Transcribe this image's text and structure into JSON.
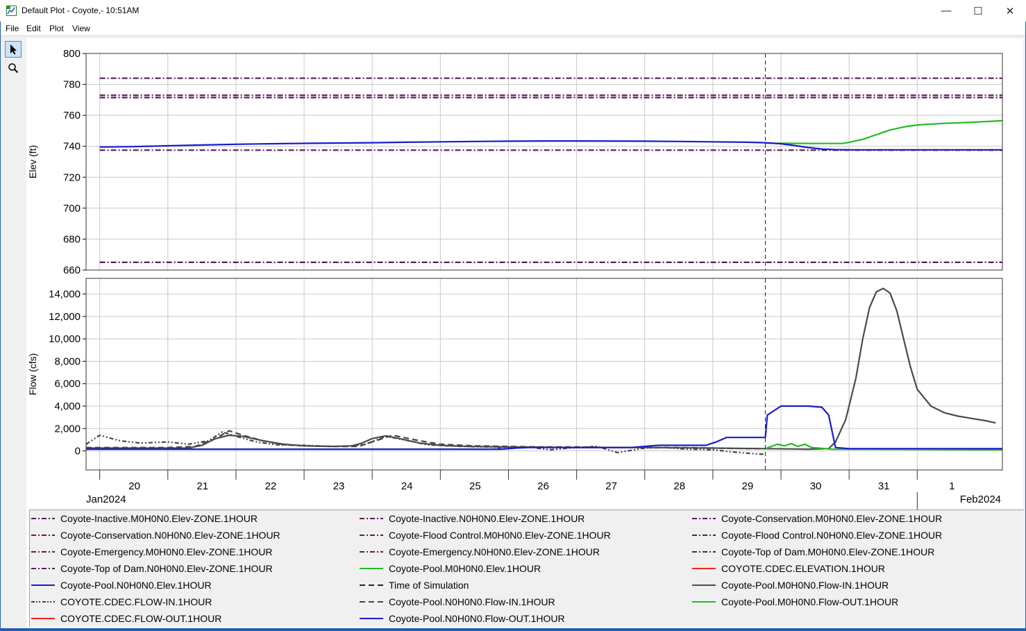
{
  "window": {
    "title": "Default Plot - Coyote,- 10:51AM",
    "icon": "chart-app-icon",
    "buttons": {
      "minimize": "—",
      "maximize": "☐",
      "close": "✕"
    }
  },
  "menu": {
    "items": [
      "File",
      "Edit",
      "Plot",
      "View"
    ]
  },
  "tools": [
    {
      "name": "pointer",
      "icon": "pointer-arrow-icon",
      "active": true
    },
    {
      "name": "zoom",
      "icon": "magnifier-icon",
      "active": false
    }
  ],
  "chart_data": [
    {
      "type": "line",
      "ylabel": "Elev (ft)",
      "ylim": [
        660,
        800
      ],
      "yticks": [
        "800",
        "780",
        "760",
        "740",
        "720",
        "700",
        "680",
        "660"
      ],
      "grid": true,
      "time_of_simulation": 29.77,
      "series": [
        {
          "name": "Coyote-Top of Dam",
          "color": "#5a1a5a",
          "style": "dashdot",
          "x": [
            20,
            33.25
          ],
          "y": [
            784,
            784
          ]
        },
        {
          "name": "Coyote-Flood Control",
          "color": "#5a1a5a",
          "style": "dashdot",
          "x": [
            20,
            33.25
          ],
          "y": [
            773,
            773
          ]
        },
        {
          "name": "Coyote-Emergency",
          "color": "#5a1a5a",
          "style": "dashdot",
          "x": [
            20,
            33.25
          ],
          "y": [
            771.5,
            771.5
          ]
        },
        {
          "name": "Coyote-Conservation",
          "color": "#5a1a5a",
          "style": "dashdot",
          "x": [
            20,
            33.25
          ],
          "y": [
            737.5,
            737.5
          ]
        },
        {
          "name": "Coyote-Inactive",
          "color": "#5a1a5a",
          "style": "dashdot",
          "x": [
            20,
            33.25
          ],
          "y": [
            665,
            665
          ]
        },
        {
          "name": "Coyote-Pool.M0H0N0.Elev.1HOUR",
          "color": "#22bb22",
          "style": "solid",
          "x": [
            29.77,
            30.5,
            30.9,
            31.0,
            31.2,
            31.4,
            31.6,
            31.8,
            32.0,
            32.4,
            32.8,
            33.25
          ],
          "y": [
            742,
            741.8,
            741.8,
            742.5,
            744.5,
            747.5,
            750.5,
            752.5,
            753.8,
            754.8,
            755.5,
            756.5
          ]
        },
        {
          "name": "Coyote-Pool.N0H0N0.Elev.1HOUR",
          "color": "#1a1acc",
          "style": "solid",
          "x": [
            20,
            20.5,
            21,
            21.5,
            22,
            22.5,
            23,
            24,
            24.5,
            25,
            25.5,
            26,
            26.5,
            27,
            28,
            28.5,
            29,
            29.5,
            29.77,
            30.0,
            30.2,
            30.4,
            30.6,
            30.8,
            31.0,
            33.25
          ],
          "y": [
            739.5,
            739.8,
            740.3,
            740.8,
            741.3,
            741.6,
            741.9,
            742.3,
            742.6,
            742.9,
            743.1,
            743.3,
            743.4,
            743.4,
            743.3,
            743.1,
            742.9,
            742.6,
            742.3,
            741.6,
            740.5,
            739.2,
            738.2,
            737.8,
            737.7,
            737.7
          ]
        }
      ]
    },
    {
      "type": "line",
      "ylabel": "Flow (cfs)",
      "ylim": [
        -1700,
        15400
      ],
      "yticks": [
        "14,000",
        "12,000",
        "10,000",
        "8,000",
        "6,000",
        "4,000",
        "2,000",
        "0"
      ],
      "ytick_values": [
        14000,
        12000,
        10000,
        8000,
        6000,
        4000,
        2000,
        0
      ],
      "grid": true,
      "xticks": [
        "20",
        "21",
        "22",
        "23",
        "24",
        "25",
        "26",
        "27",
        "28",
        "29",
        "30",
        "31",
        "1"
      ],
      "xtick_values": [
        20,
        21,
        22,
        23,
        24,
        25,
        26,
        27,
        28,
        29,
        30,
        31,
        32
      ],
      "xlim": [
        19.8,
        33.25
      ],
      "month_labels": [
        "Jan2024",
        "Feb2024"
      ],
      "time_of_simulation": 29.77,
      "series": [
        {
          "name": "COYOTE.CDEC.FLOW-IN.1HOUR",
          "color": "#444444",
          "style": "dashdotdot",
          "x": [
            19.8,
            20.0,
            20.3,
            20.6,
            21.0,
            21.3,
            21.6,
            21.8,
            22.0,
            22.3,
            22.6,
            23.0,
            23.3,
            23.6,
            23.9,
            24.2,
            24.5,
            24.8,
            25.1,
            25.4,
            25.7,
            26.0,
            26.3,
            26.6,
            27.0,
            27.3,
            27.6,
            28.0,
            28.3,
            28.6,
            29.0,
            29.3,
            29.6,
            29.75
          ],
          "y": [
            600,
            1400,
            900,
            700,
            800,
            600,
            900,
            1700,
            1300,
            800,
            550,
            500,
            420,
            400,
            600,
            1300,
            950,
            550,
            450,
            380,
            350,
            250,
            350,
            100,
            300,
            400,
            -150,
            250,
            300,
            150,
            100,
            -100,
            -250,
            -300
          ]
        },
        {
          "name": "Coyote-Pool.N0H0N0.Flow-IN.1HOUR",
          "color": "#444444",
          "style": "dashed",
          "x": [
            19.8,
            20.2,
            20.6,
            21.0,
            21.4,
            21.7,
            21.9,
            22.1,
            22.4,
            22.7,
            23.0,
            23.4,
            23.8,
            24.0,
            24.3,
            24.7,
            25.0,
            25.5,
            26.0,
            26.5,
            27.0,
            27.5,
            28.0,
            28.5,
            29.0,
            29.5,
            29.75
          ],
          "y": [
            300,
            300,
            300,
            300,
            400,
            1100,
            1800,
            1400,
            900,
            550,
            450,
            400,
            400,
            800,
            1400,
            900,
            600,
            450,
            400,
            350,
            350,
            300,
            300,
            300,
            250,
            200,
            200
          ]
        },
        {
          "name": "Coyote-Pool.M0H0N0.Flow-IN.1HOUR",
          "color": "#4a4a4a",
          "style": "solid",
          "x": [
            19.8,
            20.5,
            21.3,
            21.5,
            21.7,
            21.9,
            22.1,
            22.4,
            22.7,
            23.0,
            23.4,
            23.7,
            23.85,
            24.0,
            24.2,
            24.4,
            24.7,
            25.0,
            25.4,
            26.0,
            27.0,
            28.0,
            29.0,
            29.77,
            30.4,
            30.7,
            30.8,
            30.95,
            31.1,
            31.2,
            31.3,
            31.4,
            31.5,
            31.6,
            31.7,
            31.8,
            31.9,
            32.0,
            32.2,
            32.4,
            32.6,
            32.8,
            33.0,
            33.15
          ],
          "y": [
            250,
            250,
            250,
            500,
            1100,
            1400,
            1300,
            900,
            600,
            450,
            400,
            450,
            700,
            1100,
            1350,
            1100,
            700,
            500,
            400,
            350,
            300,
            300,
            250,
            200,
            150,
            200,
            800,
            2800,
            6500,
            10000,
            12800,
            14200,
            14500,
            14100,
            12500,
            10000,
            7500,
            5500,
            4000,
            3400,
            3100,
            2900,
            2700,
            2500
          ]
        },
        {
          "name": "Coyote-Pool.M0H0N0.Flow-OUT.1HOUR",
          "color": "#22bb22",
          "style": "solid",
          "x": [
            29.77,
            29.95,
            30.05,
            30.15,
            30.25,
            30.35,
            30.45,
            30.55,
            30.75,
            33.25
          ],
          "y": [
            200,
            600,
            450,
            650,
            400,
            600,
            300,
            250,
            150,
            100
          ]
        },
        {
          "name": "Coyote-Pool.N0H0N0.Flow-OUT.1HOUR",
          "color": "#1a1acc",
          "style": "solid",
          "x": [
            19.8,
            25.9,
            26.1,
            26.3,
            27.0,
            27.8,
            28.2,
            28.5,
            28.9,
            29.05,
            29.2,
            29.77,
            29.8,
            30.0,
            30.2,
            30.4,
            30.6,
            30.7,
            30.8,
            31.0,
            33.25
          ],
          "y": [
            150,
            150,
            250,
            300,
            300,
            300,
            500,
            500,
            500,
            800,
            1200,
            1200,
            3200,
            4000,
            4000,
            4000,
            3900,
            3200,
            300,
            200,
            200
          ]
        }
      ]
    }
  ],
  "legend": {
    "items": [
      {
        "label": "Coyote-Inactive.M0H0N0.Elev-ZONE.1HOUR",
        "color": "#5a1a5a",
        "style": "dashdot"
      },
      {
        "label": "Coyote-Inactive.N0H0N0.Elev-ZONE.1HOUR",
        "color": "#5a1a5a",
        "style": "dashdot"
      },
      {
        "label": "Coyote-Conservation.M0H0N0.Elev-ZONE.1HOUR",
        "color": "#5a1a5a",
        "style": "dashdot"
      },
      {
        "label": "Coyote-Conservation.N0H0N0.Elev-ZONE.1HOUR",
        "color": "#5a1a5a",
        "style": "dashdot"
      },
      {
        "label": "Coyote-Flood Control.M0H0N0.Elev-ZONE.1HOUR",
        "color": "#5a1a5a",
        "style": "dashdot"
      },
      {
        "label": "Coyote-Flood Control.N0H0N0.Elev-ZONE.1HOUR",
        "color": "#5a1a5a",
        "style": "dashdot"
      },
      {
        "label": "Coyote-Emergency.M0H0N0.Elev-ZONE.1HOUR",
        "color": "#5a1a5a",
        "style": "dashdot"
      },
      {
        "label": "Coyote-Emergency.N0H0N0.Elev-ZONE.1HOUR",
        "color": "#5a1a5a",
        "style": "dashdot"
      },
      {
        "label": "Coyote-Top of Dam.M0H0N0.Elev-ZONE.1HOUR",
        "color": "#5a1a5a",
        "style": "dashdot"
      },
      {
        "label": "Coyote-Top of Dam.N0H0N0.Elev-ZONE.1HOUR",
        "color": "#5a1a5a",
        "style": "dashdot"
      },
      {
        "label": "Coyote-Pool.M0H0N0.Elev.1HOUR",
        "color": "#22bb22",
        "style": "solid"
      },
      {
        "label": "COYOTE.CDEC.ELEVATION.1HOUR",
        "color": "#ee2222",
        "style": "solid"
      },
      {
        "label": "Coyote-Pool.N0H0N0.Elev.1HOUR",
        "color": "#1a1acc",
        "style": "solid"
      },
      {
        "label": "Time of Simulation",
        "color": "#222222",
        "style": "dashed"
      },
      {
        "label": "Coyote-Pool.M0H0N0.Flow-IN.1HOUR",
        "color": "#4a4a4a",
        "style": "solid"
      },
      {
        "label": "COYOTE.CDEC.FLOW-IN.1HOUR",
        "color": "#444444",
        "style": "dashdotdot"
      },
      {
        "label": "Coyote-Pool.N0H0N0.Flow-IN.1HOUR",
        "color": "#444444",
        "style": "dashed"
      },
      {
        "label": "Coyote-Pool.M0H0N0.Flow-OUT.1HOUR",
        "color": "#22bb22",
        "style": "solid"
      },
      {
        "label": "COYOTE.CDEC.FLOW-OUT.1HOUR",
        "color": "#ee2222",
        "style": "solid"
      },
      {
        "label": "Coyote-Pool.N0H0N0.Flow-OUT.1HOUR",
        "color": "#1a1acc",
        "style": "solid"
      }
    ]
  }
}
